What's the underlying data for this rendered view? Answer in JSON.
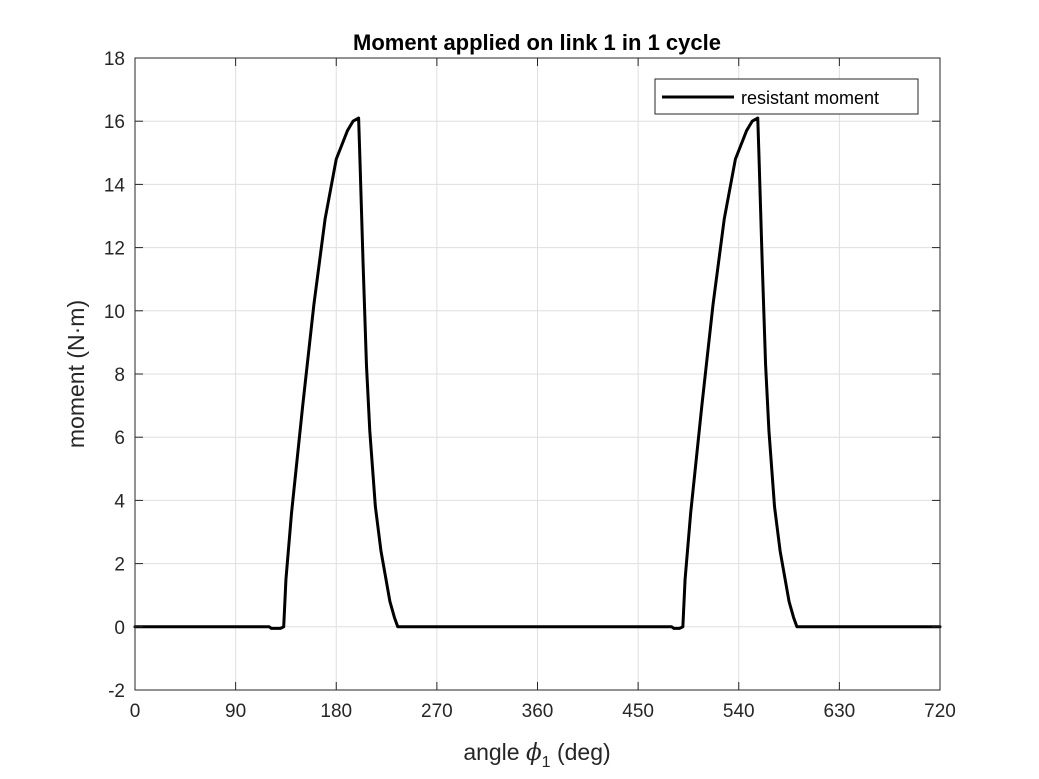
{
  "chart_data": {
    "type": "line",
    "title": "Moment applied on link 1 in 1 cycle",
    "xlabel": {
      "prefix": "angle ",
      "symbol": "ϕ",
      "subscript": "1",
      "suffix": " (deg)"
    },
    "ylabel": "moment (N·m)",
    "xlim": [
      0,
      720
    ],
    "ylim": [
      -2,
      18
    ],
    "xticks": [
      0,
      90,
      180,
      270,
      360,
      450,
      540,
      630,
      720
    ],
    "yticks": [
      -2,
      0,
      2,
      4,
      6,
      8,
      10,
      12,
      14,
      16,
      18
    ],
    "grid": true,
    "legend": {
      "placement": "top-right"
    },
    "series": [
      {
        "name": "resistant moment",
        "color": "#000000",
        "x": [
          0,
          120,
          122,
          130,
          133,
          135,
          140,
          150,
          160,
          170,
          180,
          190,
          195,
          200,
          201,
          204,
          207,
          210,
          215,
          220,
          228,
          232,
          235,
          236,
          360,
          480,
          482,
          487,
          490,
          492,
          497,
          507,
          517,
          527,
          537,
          547,
          552,
          557,
          558,
          561,
          564,
          567,
          572,
          577,
          585,
          589,
          592,
          593,
          720
        ],
        "y": [
          0,
          0,
          -0.05,
          -0.05,
          0,
          1.5,
          3.6,
          7.0,
          10.2,
          12.9,
          14.8,
          15.7,
          16.0,
          16.1,
          15.0,
          11.5,
          8.3,
          6.2,
          3.8,
          2.4,
          0.8,
          0.3,
          0,
          0,
          0,
          0,
          -0.05,
          -0.05,
          0,
          1.5,
          3.6,
          7.0,
          10.2,
          12.9,
          14.8,
          15.7,
          16.0,
          16.1,
          15.0,
          11.5,
          8.3,
          6.2,
          3.8,
          2.4,
          0.8,
          0.3,
          0,
          0,
          0
        ]
      }
    ]
  }
}
